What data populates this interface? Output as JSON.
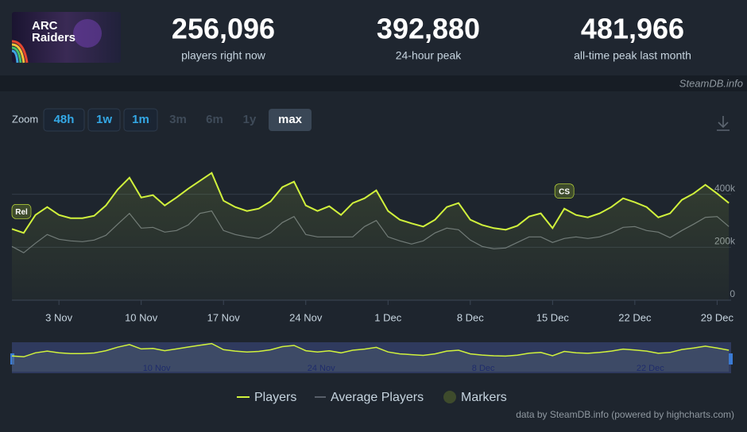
{
  "header": {
    "image_text": [
      "ARC",
      "Raiders"
    ],
    "stats": [
      {
        "value": "256,096",
        "label": "players right now"
      },
      {
        "value": "392,880",
        "label": "24-hour peak"
      },
      {
        "value": "481,966",
        "label": "all-time peak last month"
      }
    ],
    "source": "SteamDB.info"
  },
  "zoom": {
    "label": "Zoom",
    "buttons": [
      {
        "label": "48h",
        "state": "enabled"
      },
      {
        "label": "1w",
        "state": "enabled"
      },
      {
        "label": "1m",
        "state": "enabled"
      },
      {
        "label": "3m",
        "state": "disabled"
      },
      {
        "label": "6m",
        "state": "disabled"
      },
      {
        "label": "1y",
        "state": "disabled"
      },
      {
        "label": "max",
        "state": "active"
      }
    ]
  },
  "chart_data": {
    "type": "line",
    "categories": [
      "30 Oct",
      "31 Oct",
      "1 Nov",
      "2 Nov",
      "3 Nov",
      "4 Nov",
      "5 Nov",
      "6 Nov",
      "7 Nov",
      "8 Nov",
      "9 Nov",
      "10 Nov",
      "11 Nov",
      "12 Nov",
      "13 Nov",
      "14 Nov",
      "15 Nov",
      "16 Nov",
      "17 Nov",
      "18 Nov",
      "19 Nov",
      "20 Nov",
      "21 Nov",
      "22 Nov",
      "23 Nov",
      "24 Nov",
      "25 Nov",
      "26 Nov",
      "27 Nov",
      "28 Nov",
      "29 Nov",
      "30 Nov",
      "1 Dec",
      "2 Dec",
      "3 Dec",
      "4 Dec",
      "5 Dec",
      "6 Dec",
      "7 Dec",
      "8 Dec",
      "9 Dec",
      "10 Dec",
      "11 Dec",
      "12 Dec",
      "13 Dec",
      "14 Dec",
      "15 Dec",
      "16 Dec",
      "17 Dec",
      "18 Dec",
      "19 Dec",
      "20 Dec",
      "21 Dec",
      "22 Dec",
      "23 Dec",
      "24 Dec",
      "25 Dec",
      "26 Dec",
      "27 Dec",
      "28 Dec",
      "29 Dec",
      "30 Dec"
    ],
    "xticks": [
      "3 Nov",
      "10 Nov",
      "17 Nov",
      "24 Nov",
      "1 Dec",
      "8 Dec",
      "15 Dec",
      "22 Dec",
      "29 Dec"
    ],
    "series": [
      {
        "name": "Players",
        "color": "#d1f23c",
        "values": [
          269000,
          254000,
          322000,
          352000,
          322000,
          310000,
          310000,
          319000,
          358000,
          418000,
          463000,
          388000,
          397000,
          358000,
          388000,
          421000,
          451000,
          481000,
          376000,
          352000,
          337000,
          346000,
          373000,
          427000,
          448000,
          358000,
          337000,
          355000,
          322000,
          367000,
          385000,
          415000,
          337000,
          304000,
          290000,
          278000,
          304000,
          352000,
          367000,
          304000,
          284000,
          272000,
          266000,
          281000,
          316000,
          328000,
          272000,
          346000,
          322000,
          313000,
          328000,
          352000,
          385000,
          370000,
          352000,
          313000,
          328000,
          379000,
          403000,
          436000,
          403000,
          367000
        ]
      },
      {
        "name": "Average Players",
        "color": "#6b737d",
        "values": [
          203000,
          179000,
          215000,
          248000,
          230000,
          224000,
          221000,
          227000,
          245000,
          287000,
          328000,
          272000,
          275000,
          257000,
          263000,
          284000,
          328000,
          337000,
          263000,
          248000,
          239000,
          233000,
          254000,
          293000,
          316000,
          248000,
          239000,
          239000,
          239000,
          239000,
          278000,
          301000,
          239000,
          224000,
          212000,
          224000,
          254000,
          272000,
          266000,
          227000,
          203000,
          194000,
          197000,
          218000,
          239000,
          239000,
          218000,
          233000,
          239000,
          233000,
          239000,
          254000,
          275000,
          278000,
          263000,
          257000,
          236000,
          263000,
          287000,
          313000,
          316000,
          278000
        ]
      }
    ],
    "markers": {
      "name": "Markers",
      "color": "#3e4b2c",
      "items": [
        {
          "label": "Rel",
          "x": "30 Oct"
        },
        {
          "label": "CS",
          "x": "16 Dec"
        }
      ]
    },
    "ylim": [
      0,
      600000
    ],
    "yticks": [
      0,
      {
        "value": 200000,
        "label": "200k"
      },
      {
        "value": 400000,
        "label": "400k"
      }
    ],
    "grid": true,
    "navigator_ticks": [
      "10 Nov",
      "24 Nov",
      "8 Dec",
      "22 Dec"
    ]
  },
  "credits": "data by SteamDB.info (powered by highcharts.com)"
}
